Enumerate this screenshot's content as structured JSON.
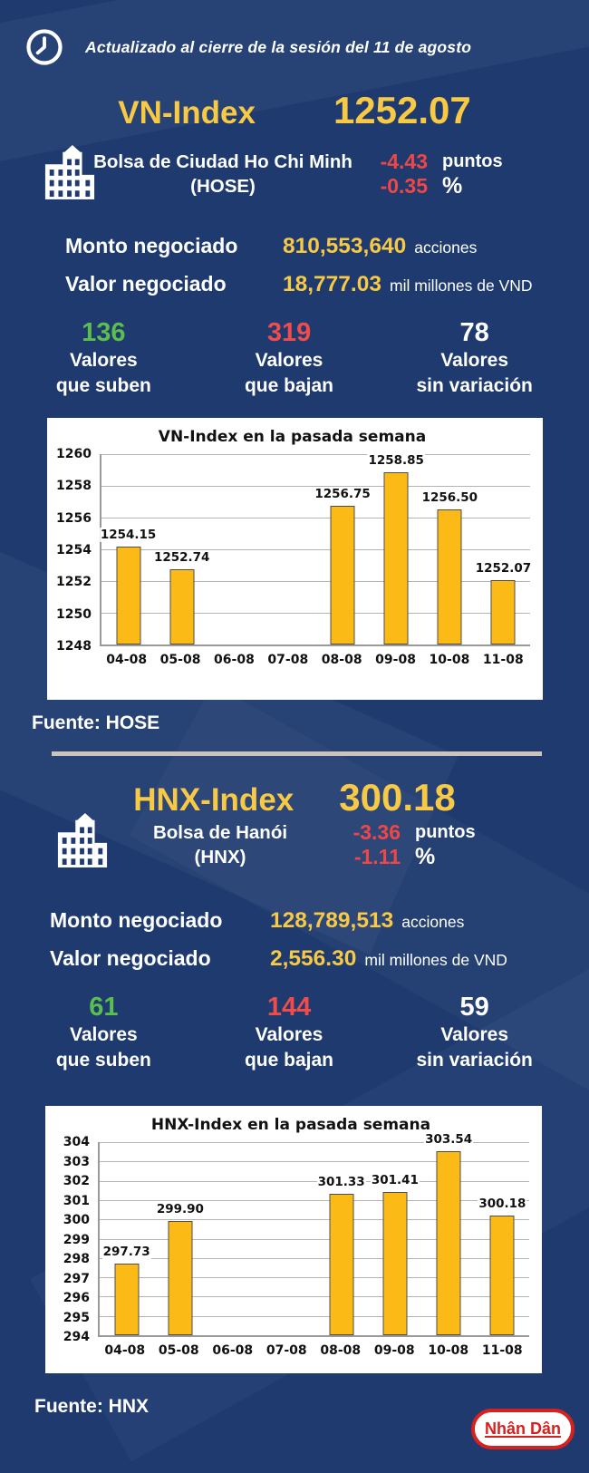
{
  "header": {
    "updated_text": "Actualizado al cierre de la sesión del 11 de agosto"
  },
  "vn": {
    "index_name": "VN-Index",
    "index_value": "1252.07",
    "exchange_name_line1": "Bolsa de Ciudad Ho Chi Minh",
    "exchange_name_line2": "(HOSE)",
    "change_points": "-4.43",
    "change_points_unit": "puntos",
    "change_percent": "-0.35",
    "change_percent_unit": "%",
    "volume_label": "Monto negociado",
    "volume_value": "810,553,640",
    "volume_unit": "acciones",
    "turnover_label": "Valor negociado",
    "turnover_value": "18,777.03",
    "turnover_unit": "mil millones de VND",
    "stats": [
      {
        "value": "136",
        "line1": "Valores",
        "line2": "que suben",
        "color": "#5BBE4E"
      },
      {
        "value": "319",
        "line1": "Valores",
        "line2": "que bajan",
        "color": "#F04C4C"
      },
      {
        "value": "78",
        "line1": "Valores",
        "line2": "sin variación",
        "color": "#FFFFFF"
      }
    ],
    "source": "Fuente: HOSE"
  },
  "hnx": {
    "index_name": "HNX-Index",
    "index_value": "300.18",
    "exchange_name_line1": "Bolsa de Hanói",
    "exchange_name_line2": "(HNX)",
    "change_points": "-3.36",
    "change_points_unit": "puntos",
    "change_percent": "-1.11",
    "change_percent_unit": "%",
    "volume_label": "Monto negociado",
    "volume_value": "128,789,513",
    "volume_unit": "acciones",
    "turnover_label": "Valor negociado",
    "turnover_value": "2,556.30",
    "turnover_unit": "mil millones de VND",
    "stats": [
      {
        "value": "61",
        "line1": "Valores",
        "line2": "que suben",
        "color": "#5BBE4E"
      },
      {
        "value": "144",
        "line1": "Valores",
        "line2": "que bajan",
        "color": "#F04C4C"
      },
      {
        "value": "59",
        "line1": "Valores",
        "line2": "sin variación",
        "color": "#FFFFFF"
      }
    ],
    "source": "Fuente:  HNX"
  },
  "footer": {
    "logo_text": "Nhân Dân"
  },
  "colors": {
    "background": "#1E3A6F",
    "accent_yellow": "#F7C944",
    "negative_red": "#EF4747",
    "positive_green": "#5BBE4E",
    "bar_fill": "#FBBA16",
    "logo_red": "#D6211F",
    "divider_gray": "#CBC3BC"
  },
  "chart_data": [
    {
      "type": "bar",
      "title": "VN-Index en la pasada semana",
      "categories": [
        "04-08",
        "05-08",
        "06-08",
        "07-08",
        "08-08",
        "09-08",
        "10-08",
        "11-08"
      ],
      "values": [
        1254.15,
        1252.74,
        null,
        null,
        1256.75,
        1258.85,
        1256.5,
        1252.07
      ],
      "labels": [
        "1254.15",
        "1252.74",
        null,
        null,
        "1256.75",
        "1258.85",
        "1256.50",
        "1252.07"
      ],
      "xlabel": "",
      "ylabel": "",
      "ylim": [
        1248,
        1260
      ],
      "ytick_step": 2,
      "grid": true,
      "legend": false,
      "bar_color": "#FBBA16"
    },
    {
      "type": "bar",
      "title": "HNX-Index en la pasada semana",
      "categories": [
        "04-08",
        "05-08",
        "06-08",
        "07-08",
        "08-08",
        "09-08",
        "10-08",
        "11-08"
      ],
      "values": [
        297.73,
        299.9,
        null,
        null,
        301.33,
        301.41,
        303.54,
        300.18
      ],
      "labels": [
        "297.73",
        "299.90",
        null,
        null,
        "301.33",
        "301.41",
        "303.54",
        "300.18"
      ],
      "xlabel": "",
      "ylabel": "",
      "ylim": [
        294,
        304
      ],
      "ytick_step": 1,
      "grid": true,
      "legend": false,
      "bar_color": "#FBBA16"
    }
  ]
}
